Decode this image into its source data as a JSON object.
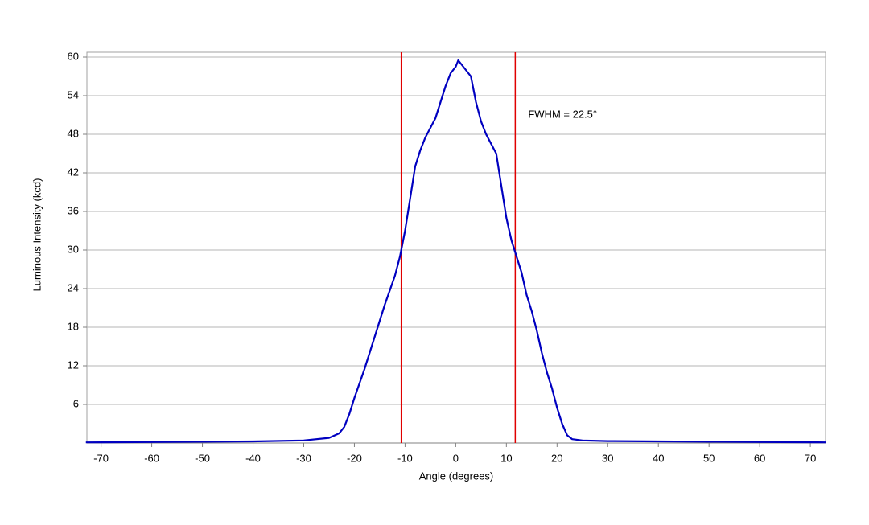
{
  "chart_data": {
    "type": "line",
    "xlabel": "Angle (degrees)",
    "ylabel": "Luminous Intensity (kcd)",
    "annotation": "FWHM = 22.5°",
    "x": [
      -73,
      -60,
      -50,
      -40,
      -30,
      -25,
      -23,
      -22,
      -21,
      -20,
      -18,
      -16,
      -14,
      -12,
      -11,
      -10,
      -9,
      -8,
      -7,
      -6,
      -4,
      -3,
      -2,
      -1,
      0,
      0.5,
      1,
      2,
      3,
      4,
      5,
      6,
      7,
      8,
      9,
      10,
      11,
      12,
      13,
      14,
      15,
      16,
      17,
      18,
      19,
      20,
      21,
      22,
      23,
      25,
      30,
      40,
      50,
      60,
      73
    ],
    "series": [
      {
        "name": "Intensity",
        "color": "#0000c0",
        "values": [
          0.1,
          0.15,
          0.2,
          0.25,
          0.4,
          0.8,
          1.5,
          2.5,
          4.5,
          7,
          11.5,
          16.5,
          21.5,
          26,
          29,
          33,
          38,
          43,
          45.5,
          47.5,
          50.5,
          53,
          55.5,
          57.5,
          58.5,
          59.5,
          59,
          58,
          57,
          53,
          50,
          48,
          46.5,
          45,
          40,
          35,
          31.5,
          29,
          26.5,
          23,
          20.5,
          17.5,
          14,
          11,
          8.5,
          5.5,
          3,
          1.2,
          0.6,
          0.4,
          0.3,
          0.25,
          0.2,
          0.15,
          0.1
        ]
      }
    ],
    "vlines": [
      -10.75,
      11.75
    ],
    "vline_color": "#e00000",
    "xlim": [
      -72.8,
      73
    ],
    "xticks": [
      -70,
      -60,
      -50,
      -40,
      -30,
      -20,
      -10,
      0,
      10,
      20,
      30,
      40,
      50,
      60,
      70
    ],
    "ylim": [
      0,
      60.75
    ],
    "yticks": [
      6,
      12,
      18,
      24,
      30,
      36,
      42,
      48,
      54,
      60
    ],
    "grid": true
  }
}
